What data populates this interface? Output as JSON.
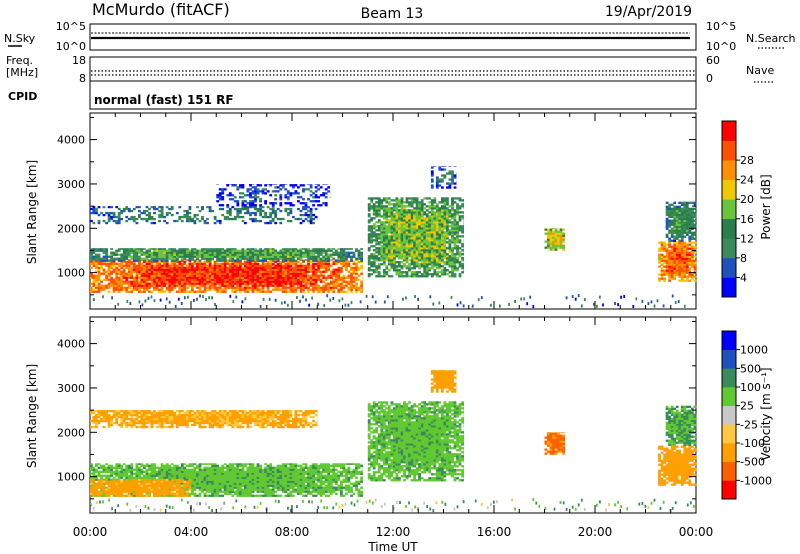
{
  "header": {
    "station": "McMurdo (fitACF)",
    "beam": "Beam 13",
    "date": "19/Apr/2019"
  },
  "noise_panel": {
    "left_label": "N.Sky",
    "right_label": "N.Search",
    "left_ticks": [
      "10^5",
      "10^0"
    ],
    "right_ticks": [
      "10^5",
      "10^0"
    ]
  },
  "freq_panel": {
    "left_label_1": "Freq.",
    "left_label_2": "[MHz]",
    "right_label": "Nave",
    "left_ticks": [
      "18",
      "8"
    ],
    "right_ticks": [
      "60",
      "0"
    ]
  },
  "cpid_panel": {
    "label": "CPID",
    "text": "normal (fast) 151 RF"
  },
  "time_axis": {
    "label": "Time UT",
    "ticks": [
      "00:00",
      "04:00",
      "08:00",
      "12:00",
      "16:00",
      "20:00",
      "00:00"
    ]
  },
  "colors": {
    "power": [
      "#0000ff",
      "#2050c0",
      "#3a8a5a",
      "#2a7e4a",
      "#6cc43c",
      "#f0c800",
      "#ff9000",
      "#ff5000",
      "#ff0000"
    ],
    "velocity": [
      "#ff0000",
      "#ff6000",
      "#ffa000",
      "#ffc840",
      "#c8c8c8",
      "#60c830",
      "#3a8a5a",
      "#2050c0",
      "#0000ff"
    ]
  },
  "chart_data": [
    {
      "type": "heatmap",
      "name_field": "power",
      "ylabel": "Slant Range [km]",
      "xlabel": "Time UT",
      "xlim": [
        0,
        24
      ],
      "ylim": [
        180,
        4600
      ],
      "yticks": [
        "1000",
        "2000",
        "3000",
        "4000"
      ],
      "colorbar": {
        "label": "Power [dB]",
        "ticks": [
          "4",
          "8",
          "12",
          "16",
          "20",
          "24",
          "28"
        ],
        "range": [
          0,
          32
        ]
      },
      "regions": [
        {
          "t0": 0.0,
          "t1": 10.8,
          "r0": 550,
          "r1": 1300,
          "level": "strong",
          "value": 28
        },
        {
          "t0": 0.0,
          "t1": 10.8,
          "r0": 1250,
          "r1": 1550,
          "level": "moderate",
          "value": 14
        },
        {
          "t0": 0.0,
          "t1": 9.0,
          "r0": 2100,
          "r1": 2500,
          "level": "weak",
          "value": 10
        },
        {
          "t0": 5.0,
          "t1": 9.5,
          "r0": 2500,
          "r1": 3000,
          "level": "weak",
          "value": 6
        },
        {
          "t0": 11.0,
          "t1": 14.8,
          "r0": 900,
          "r1": 2700,
          "level": "moderate",
          "value": 16
        },
        {
          "t0": 13.5,
          "t1": 14.5,
          "r0": 2900,
          "r1": 3400,
          "level": "weak",
          "value": 8
        },
        {
          "t0": 18.0,
          "t1": 18.8,
          "r0": 1500,
          "r1": 2000,
          "level": "moderate",
          "value": 20
        },
        {
          "t0": 22.5,
          "t1": 24.0,
          "r0": 800,
          "r1": 1700,
          "level": "strong",
          "value": 26
        },
        {
          "t0": 22.8,
          "t1": 24.0,
          "r0": 1700,
          "r1": 2600,
          "level": "moderate",
          "value": 12
        }
      ]
    },
    {
      "type": "heatmap",
      "name_field": "velocity",
      "ylabel": "Slant Range [km]",
      "xlabel": "Time UT",
      "xlim": [
        0,
        24
      ],
      "ylim": [
        180,
        4600
      ],
      "yticks": [
        "1000",
        "2000",
        "3000",
        "4000"
      ],
      "colorbar": {
        "label": "Velocity [m s⁻¹]",
        "ticks": [
          "-1000",
          "-500",
          "-100",
          "-25",
          "25",
          "100",
          "500",
          "1000"
        ],
        "range": [
          -2000,
          2000
        ]
      },
      "regions": [
        {
          "t0": 0.0,
          "t1": 10.8,
          "r0": 550,
          "r1": 1300,
          "level": "main",
          "value": 80
        },
        {
          "t0": 0.0,
          "t1": 4.0,
          "r0": 550,
          "r1": 950,
          "level": "receding",
          "value": -150
        },
        {
          "t0": 0.0,
          "t1": 9.0,
          "r0": 2100,
          "r1": 2500,
          "level": "receding",
          "value": -120
        },
        {
          "t0": 11.0,
          "t1": 14.8,
          "r0": 900,
          "r1": 2700,
          "level": "main",
          "value": 80
        },
        {
          "t0": 13.5,
          "t1": 14.5,
          "r0": 2900,
          "r1": 3400,
          "level": "receding",
          "value": -200
        },
        {
          "t0": 18.0,
          "t1": 18.8,
          "r0": 1500,
          "r1": 2000,
          "level": "receding",
          "value": -600
        },
        {
          "t0": 22.5,
          "t1": 24.0,
          "r0": 800,
          "r1": 1700,
          "level": "receding",
          "value": -300
        },
        {
          "t0": 22.8,
          "t1": 24.0,
          "r0": 1700,
          "r1": 2600,
          "level": "main",
          "value": 100
        }
      ]
    }
  ]
}
